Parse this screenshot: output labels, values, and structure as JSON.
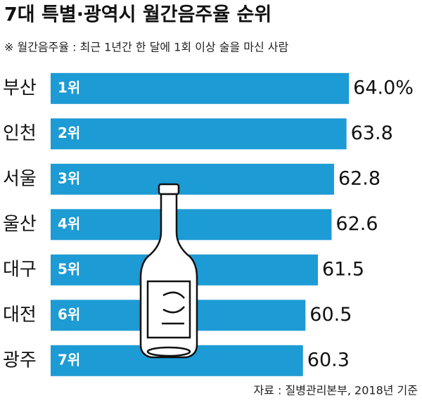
{
  "chart_data": {
    "type": "bar",
    "orientation": "horizontal",
    "title": "7대 특별·광역시 월간음주율 순위",
    "subtitle": "※ 월간음주율 : 최근 1년간 한 달에 1회 이상 술을 마신 사람",
    "categories": [
      "부산",
      "인천",
      "서울",
      "울산",
      "대구",
      "대전",
      "광주"
    ],
    "ranks": [
      "1위",
      "2위",
      "3위",
      "4위",
      "5위",
      "6위",
      "7위"
    ],
    "values": [
      64.0,
      63.8,
      62.8,
      62.6,
      61.5,
      60.5,
      60.3
    ],
    "value_labels": [
      "64.0%",
      "63.8",
      "62.8",
      "62.6",
      "61.5",
      "60.5",
      "60.3"
    ],
    "color": "#1d9bd4",
    "xlim": [
      40,
      64.5
    ],
    "source": "자료 : 질병관리본부, 2018년 기준"
  }
}
